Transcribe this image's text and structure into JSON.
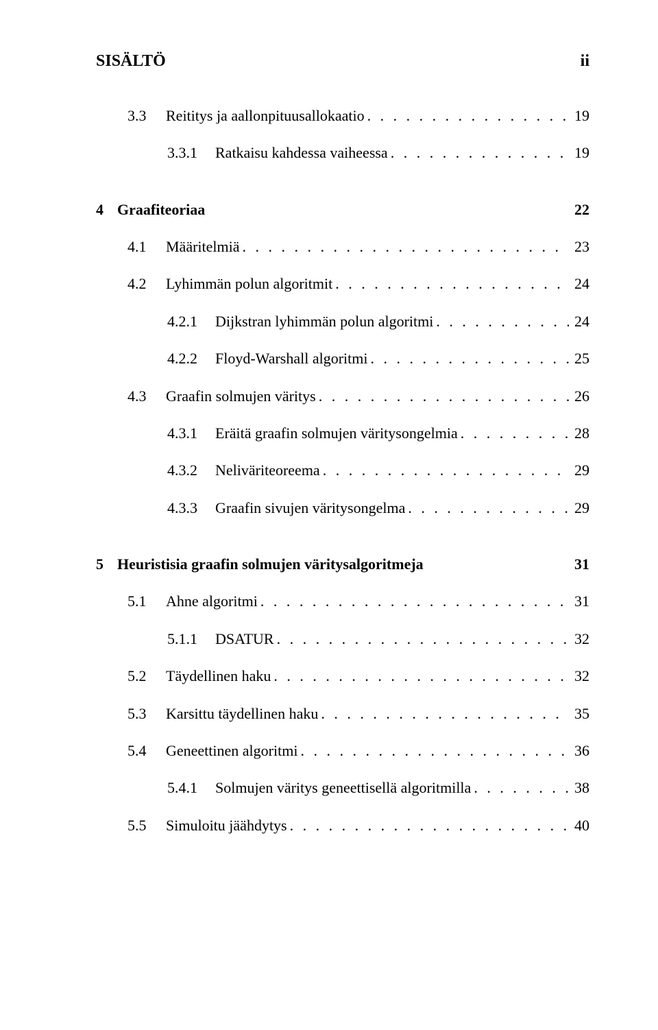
{
  "header": {
    "left": "SISÄLTÖ",
    "right": "ii"
  },
  "dots": ". . . . . . . . . . . . . . . . . . . . . . . . . . . . . . . . . . . . . . . . . . . . . . . . . . . . . . . . . . . . . . . . . .",
  "pre_chapter_entries": [
    {
      "level": 1,
      "num": "3.3",
      "label": "Reititys ja aallonpituusallokaatio",
      "page": "19"
    },
    {
      "level": 2,
      "num": "3.3.1",
      "label": "Ratkaisu kahdessa vaiheessa",
      "page": "19"
    }
  ],
  "chapters": [
    {
      "num": "4",
      "title": "Graafiteoriaa",
      "page": "22",
      "entries": [
        {
          "level": 1,
          "num": "4.1",
          "label": "Määritelmiä",
          "page": "23"
        },
        {
          "level": 1,
          "num": "4.2",
          "label": "Lyhimmän polun algoritmit",
          "page": "24"
        },
        {
          "level": 2,
          "num": "4.2.1",
          "label": "Dijkstran lyhimmän polun algoritmi",
          "page": "24"
        },
        {
          "level": 2,
          "num": "4.2.2",
          "label": "Floyd-Warshall algoritmi",
          "page": "25"
        },
        {
          "level": 1,
          "num": "4.3",
          "label": "Graafin solmujen väritys",
          "page": "26"
        },
        {
          "level": 2,
          "num": "4.3.1",
          "label": "Eräitä graafin solmujen väritysongelmia",
          "page": "28"
        },
        {
          "level": 2,
          "num": "4.3.2",
          "label": "Neliväriteoreema",
          "page": "29"
        },
        {
          "level": 2,
          "num": "4.3.3",
          "label": "Graafin sivujen väritysongelma",
          "page": "29"
        }
      ]
    },
    {
      "num": "5",
      "title": "Heuristisia graafin solmujen väritysalgoritmeja",
      "page": "31",
      "entries": [
        {
          "level": 1,
          "num": "5.1",
          "label": "Ahne algoritmi",
          "page": "31"
        },
        {
          "level": 2,
          "num": "5.1.1",
          "label": "DSATUR",
          "page": "32"
        },
        {
          "level": 1,
          "num": "5.2",
          "label": "Täydellinen haku",
          "page": "32"
        },
        {
          "level": 1,
          "num": "5.3",
          "label": "Karsittu täydellinen haku",
          "page": "35"
        },
        {
          "level": 1,
          "num": "5.4",
          "label": "Geneettinen algoritmi",
          "page": "36"
        },
        {
          "level": 2,
          "num": "5.4.1",
          "label": "Solmujen väritys geneettisellä algoritmilla",
          "page": "38"
        },
        {
          "level": 1,
          "num": "5.5",
          "label": "Simuloitu jäähdytys",
          "page": "40"
        }
      ]
    }
  ]
}
